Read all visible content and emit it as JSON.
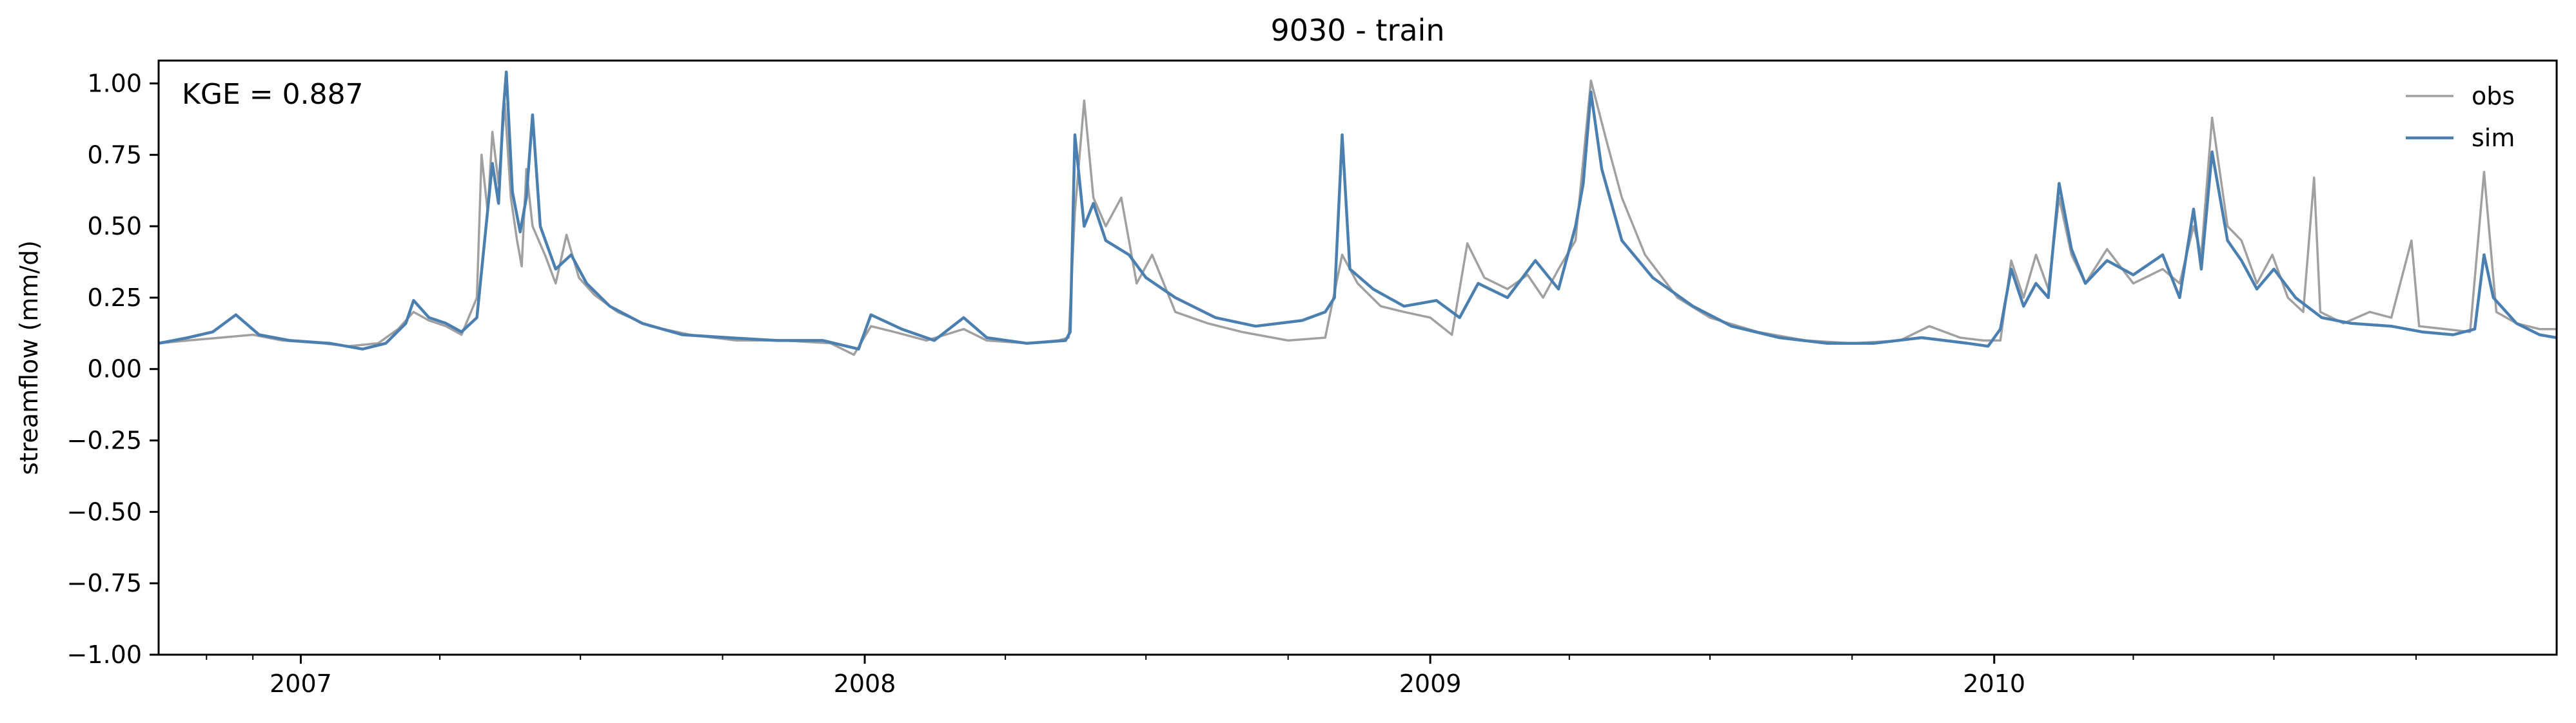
{
  "chart_data": {
    "type": "line",
    "title": "9030 - train",
    "xlabel": "",
    "ylabel": "streamflow (mm/d)",
    "annotation": "KGE = 0.887",
    "x_start": "2006-10-01",
    "x_end": "2010-12-31",
    "xlim": [
      "2006-10-01",
      "2010-12-31"
    ],
    "ylim": [
      -1.0,
      1.08
    ],
    "yticks": [
      -1.0,
      -0.75,
      -0.5,
      -0.25,
      0.0,
      0.25,
      0.5,
      0.75,
      1.0
    ],
    "ytick_labels": [
      "−1.00",
      "−0.75",
      "−0.50",
      "−0.25",
      "0.00",
      "0.25",
      "0.50",
      "0.75",
      "1.00"
    ],
    "xticks": [
      {
        "date": "2007-01-01",
        "label": "2007"
      },
      {
        "date": "2008-01-01",
        "label": "2008"
      },
      {
        "date": "2009-01-01",
        "label": "2009"
      },
      {
        "date": "2010-01-01",
        "label": "2010"
      }
    ],
    "minor_xticks": [
      "2006-11-01",
      "2006-12-01",
      "2007-04-01",
      "2007-07-01",
      "2007-10-01",
      "2008-04-01",
      "2008-07-01",
      "2008-10-01",
      "2009-04-01",
      "2009-07-01",
      "2009-10-01",
      "2010-04-01",
      "2010-07-01",
      "2010-10-01"
    ],
    "grid": false,
    "legend": "top-right",
    "series": [
      {
        "name": "obs",
        "color": "#a0a0a0",
        "points": [
          [
            "2006-10-01",
            0.09
          ],
          [
            "2006-10-20",
            0.1
          ],
          [
            "2006-11-10",
            0.11
          ],
          [
            "2006-12-01",
            0.12
          ],
          [
            "2006-12-20",
            0.1
          ],
          [
            "2007-01-15",
            0.09
          ],
          [
            "2007-02-01",
            0.08
          ],
          [
            "2007-02-20",
            0.09
          ],
          [
            "2007-03-05",
            0.14
          ],
          [
            "2007-03-15",
            0.2
          ],
          [
            "2007-03-25",
            0.17
          ],
          [
            "2007-04-05",
            0.15
          ],
          [
            "2007-04-15",
            0.12
          ],
          [
            "2007-04-25",
            0.25
          ],
          [
            "2007-04-28",
            0.75
          ],
          [
            "2007-05-02",
            0.55
          ],
          [
            "2007-05-05",
            0.83
          ],
          [
            "2007-05-09",
            0.65
          ],
          [
            "2007-05-13",
            0.93
          ],
          [
            "2007-05-17",
            0.6
          ],
          [
            "2007-05-21",
            0.45
          ],
          [
            "2007-05-24",
            0.36
          ],
          [
            "2007-05-27",
            0.7
          ],
          [
            "2007-05-31",
            0.5
          ],
          [
            "2007-06-08",
            0.4
          ],
          [
            "2007-06-15",
            0.3
          ],
          [
            "2007-06-22",
            0.47
          ],
          [
            "2007-06-30",
            0.32
          ],
          [
            "2007-07-10",
            0.26
          ],
          [
            "2007-07-25",
            0.2
          ],
          [
            "2007-08-15",
            0.15
          ],
          [
            "2007-09-10",
            0.12
          ],
          [
            "2007-10-10",
            0.1
          ],
          [
            "2007-11-10",
            0.1
          ],
          [
            "2007-12-10",
            0.09
          ],
          [
            "2007-12-25",
            0.05
          ],
          [
            "2008-01-05",
            0.15
          ],
          [
            "2008-01-20",
            0.13
          ],
          [
            "2008-02-10",
            0.1
          ],
          [
            "2008-03-05",
            0.14
          ],
          [
            "2008-03-20",
            0.1
          ],
          [
            "2008-04-15",
            0.09
          ],
          [
            "2008-05-05",
            0.1
          ],
          [
            "2008-05-12",
            0.11
          ],
          [
            "2008-05-16",
            0.55
          ],
          [
            "2008-05-22",
            0.94
          ],
          [
            "2008-05-28",
            0.6
          ],
          [
            "2008-06-05",
            0.5
          ],
          [
            "2008-06-15",
            0.6
          ],
          [
            "2008-06-25",
            0.3
          ],
          [
            "2008-07-05",
            0.4
          ],
          [
            "2008-07-20",
            0.2
          ],
          [
            "2008-08-10",
            0.16
          ],
          [
            "2008-09-01",
            0.13
          ],
          [
            "2008-10-01",
            0.1
          ],
          [
            "2008-10-25",
            0.11
          ],
          [
            "2008-11-05",
            0.4
          ],
          [
            "2008-11-15",
            0.3
          ],
          [
            "2008-11-30",
            0.22
          ],
          [
            "2008-12-15",
            0.2
          ],
          [
            "2009-01-01",
            0.18
          ],
          [
            "2009-01-15",
            0.12
          ],
          [
            "2009-01-25",
            0.44
          ],
          [
            "2009-02-05",
            0.32
          ],
          [
            "2009-02-20",
            0.28
          ],
          [
            "2009-03-05",
            0.33
          ],
          [
            "2009-03-15",
            0.25
          ],
          [
            "2009-03-25",
            0.35
          ],
          [
            "2009-04-05",
            0.45
          ],
          [
            "2009-04-15",
            1.01
          ],
          [
            "2009-04-25",
            0.8
          ],
          [
            "2009-05-05",
            0.6
          ],
          [
            "2009-05-20",
            0.4
          ],
          [
            "2009-06-10",
            0.25
          ],
          [
            "2009-07-01",
            0.18
          ],
          [
            "2009-08-01",
            0.13
          ],
          [
            "2009-09-01",
            0.1
          ],
          [
            "2009-10-01",
            0.09
          ],
          [
            "2009-11-01",
            0.1
          ],
          [
            "2009-11-20",
            0.15
          ],
          [
            "2009-12-10",
            0.11
          ],
          [
            "2009-12-25",
            0.1
          ],
          [
            "2010-01-05",
            0.1
          ],
          [
            "2010-01-12",
            0.38
          ],
          [
            "2010-01-20",
            0.25
          ],
          [
            "2010-01-28",
            0.4
          ],
          [
            "2010-02-05",
            0.28
          ],
          [
            "2010-02-12",
            0.6
          ],
          [
            "2010-02-20",
            0.4
          ],
          [
            "2010-03-01",
            0.3
          ],
          [
            "2010-03-15",
            0.42
          ],
          [
            "2010-04-01",
            0.3
          ],
          [
            "2010-04-20",
            0.35
          ],
          [
            "2010-05-01",
            0.3
          ],
          [
            "2010-05-10",
            0.5
          ],
          [
            "2010-05-15",
            0.4
          ],
          [
            "2010-05-22",
            0.88
          ],
          [
            "2010-06-01",
            0.5
          ],
          [
            "2010-06-10",
            0.45
          ],
          [
            "2010-06-20",
            0.3
          ],
          [
            "2010-06-30",
            0.4
          ],
          [
            "2010-07-10",
            0.25
          ],
          [
            "2010-07-20",
            0.2
          ],
          [
            "2010-07-27",
            0.67
          ],
          [
            "2010-07-31",
            0.2
          ],
          [
            "2010-08-15",
            0.16
          ],
          [
            "2010-09-01",
            0.2
          ],
          [
            "2010-09-15",
            0.18
          ],
          [
            "2010-09-28",
            0.45
          ],
          [
            "2010-10-03",
            0.15
          ],
          [
            "2010-10-20",
            0.14
          ],
          [
            "2010-11-05",
            0.13
          ],
          [
            "2010-11-14",
            0.69
          ],
          [
            "2010-11-22",
            0.2
          ],
          [
            "2010-12-05",
            0.16
          ],
          [
            "2010-12-20",
            0.14
          ],
          [
            "2010-12-31",
            0.14
          ]
        ]
      },
      {
        "name": "sim",
        "color": "#4a7fb0",
        "points": [
          [
            "2006-10-01",
            0.09
          ],
          [
            "2006-10-20",
            0.11
          ],
          [
            "2006-11-05",
            0.13
          ],
          [
            "2006-11-20",
            0.19
          ],
          [
            "2006-12-05",
            0.12
          ],
          [
            "2006-12-25",
            0.1
          ],
          [
            "2007-01-20",
            0.09
          ],
          [
            "2007-02-10",
            0.07
          ],
          [
            "2007-02-25",
            0.09
          ],
          [
            "2007-03-10",
            0.16
          ],
          [
            "2007-03-15",
            0.24
          ],
          [
            "2007-03-25",
            0.18
          ],
          [
            "2007-04-05",
            0.16
          ],
          [
            "2007-04-15",
            0.13
          ],
          [
            "2007-04-25",
            0.18
          ],
          [
            "2007-04-30",
            0.45
          ],
          [
            "2007-05-05",
            0.72
          ],
          [
            "2007-05-09",
            0.58
          ],
          [
            "2007-05-12",
            0.9
          ],
          [
            "2007-05-14",
            1.04
          ],
          [
            "2007-05-18",
            0.62
          ],
          [
            "2007-05-23",
            0.48
          ],
          [
            "2007-05-27",
            0.6
          ],
          [
            "2007-05-31",
            0.89
          ],
          [
            "2007-06-05",
            0.5
          ],
          [
            "2007-06-15",
            0.35
          ],
          [
            "2007-06-25",
            0.4
          ],
          [
            "2007-07-05",
            0.3
          ],
          [
            "2007-07-20",
            0.22
          ],
          [
            "2007-08-10",
            0.16
          ],
          [
            "2007-09-05",
            0.12
          ],
          [
            "2007-10-05",
            0.11
          ],
          [
            "2007-11-05",
            0.1
          ],
          [
            "2007-12-05",
            0.1
          ],
          [
            "2007-12-28",
            0.07
          ],
          [
            "2008-01-05",
            0.19
          ],
          [
            "2008-01-25",
            0.14
          ],
          [
            "2008-02-15",
            0.1
          ],
          [
            "2008-03-05",
            0.18
          ],
          [
            "2008-03-20",
            0.11
          ],
          [
            "2008-04-15",
            0.09
          ],
          [
            "2008-05-10",
            0.1
          ],
          [
            "2008-05-13",
            0.13
          ],
          [
            "2008-05-16",
            0.82
          ],
          [
            "2008-05-22",
            0.5
          ],
          [
            "2008-05-28",
            0.58
          ],
          [
            "2008-06-05",
            0.45
          ],
          [
            "2008-06-20",
            0.4
          ],
          [
            "2008-07-01",
            0.32
          ],
          [
            "2008-07-20",
            0.25
          ],
          [
            "2008-08-15",
            0.18
          ],
          [
            "2008-09-10",
            0.15
          ],
          [
            "2008-10-10",
            0.17
          ],
          [
            "2008-10-25",
            0.2
          ],
          [
            "2008-10-31",
            0.25
          ],
          [
            "2008-11-05",
            0.82
          ],
          [
            "2008-11-10",
            0.35
          ],
          [
            "2008-11-25",
            0.28
          ],
          [
            "2008-12-15",
            0.22
          ],
          [
            "2009-01-05",
            0.24
          ],
          [
            "2009-01-20",
            0.18
          ],
          [
            "2009-02-01",
            0.3
          ],
          [
            "2009-02-20",
            0.25
          ],
          [
            "2009-03-10",
            0.38
          ],
          [
            "2009-03-25",
            0.28
          ],
          [
            "2009-04-05",
            0.5
          ],
          [
            "2009-04-10",
            0.65
          ],
          [
            "2009-04-15",
            0.97
          ],
          [
            "2009-04-22",
            0.7
          ],
          [
            "2009-05-05",
            0.45
          ],
          [
            "2009-05-25",
            0.32
          ],
          [
            "2009-06-20",
            0.22
          ],
          [
            "2009-07-15",
            0.15
          ],
          [
            "2009-08-15",
            0.11
          ],
          [
            "2009-09-15",
            0.09
          ],
          [
            "2009-10-15",
            0.09
          ],
          [
            "2009-11-15",
            0.11
          ],
          [
            "2009-12-15",
            0.09
          ],
          [
            "2009-12-28",
            0.08
          ],
          [
            "2010-01-05",
            0.14
          ],
          [
            "2010-01-12",
            0.35
          ],
          [
            "2010-01-20",
            0.22
          ],
          [
            "2010-01-28",
            0.3
          ],
          [
            "2010-02-05",
            0.25
          ],
          [
            "2010-02-12",
            0.65
          ],
          [
            "2010-02-20",
            0.42
          ],
          [
            "2010-03-01",
            0.3
          ],
          [
            "2010-03-15",
            0.38
          ],
          [
            "2010-04-01",
            0.33
          ],
          [
            "2010-04-20",
            0.4
          ],
          [
            "2010-05-01",
            0.25
          ],
          [
            "2010-05-10",
            0.56
          ],
          [
            "2010-05-15",
            0.35
          ],
          [
            "2010-05-22",
            0.76
          ],
          [
            "2010-06-01",
            0.45
          ],
          [
            "2010-06-10",
            0.38
          ],
          [
            "2010-06-20",
            0.28
          ],
          [
            "2010-07-01",
            0.35
          ],
          [
            "2010-07-15",
            0.25
          ],
          [
            "2010-08-01",
            0.18
          ],
          [
            "2010-08-20",
            0.16
          ],
          [
            "2010-09-15",
            0.15
          ],
          [
            "2010-10-05",
            0.13
          ],
          [
            "2010-10-25",
            0.12
          ],
          [
            "2010-11-08",
            0.14
          ],
          [
            "2010-11-14",
            0.4
          ],
          [
            "2010-11-20",
            0.25
          ],
          [
            "2010-12-05",
            0.16
          ],
          [
            "2010-12-20",
            0.12
          ],
          [
            "2010-12-31",
            0.11
          ]
        ]
      }
    ]
  }
}
